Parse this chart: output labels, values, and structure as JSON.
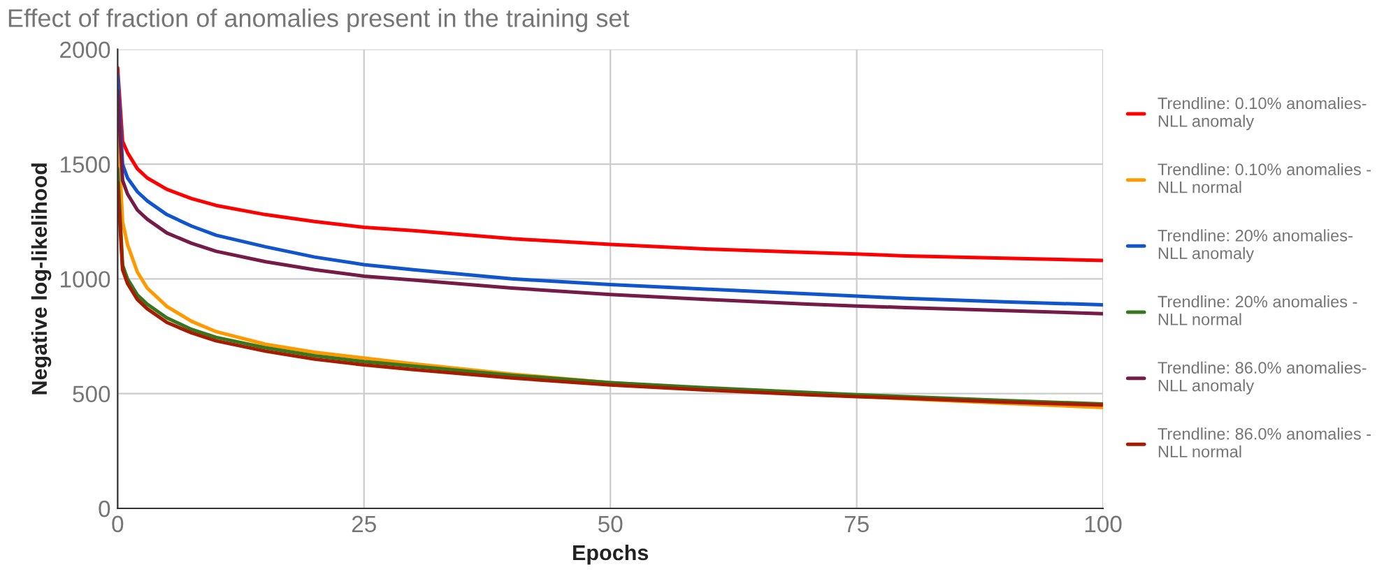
{
  "chart_data": {
    "type": "line",
    "title": "Effect of fraction of anomalies present in the training set",
    "xlabel": "Epochs",
    "ylabel": "Negative log-likelihood",
    "x": [
      0,
      0.5,
      1,
      2,
      3,
      5,
      7.5,
      10,
      15,
      20,
      25,
      30,
      40,
      50,
      60,
      70,
      75,
      80,
      90,
      100
    ],
    "series": [
      {
        "name": "Trendline: 0.10% anomalies-\nNLL anomaly",
        "color": "#ff0000",
        "values": [
          1920,
          1600,
          1550,
          1480,
          1440,
          1390,
          1350,
          1320,
          1280,
          1250,
          1225,
          1210,
          1175,
          1150,
          1130,
          1115,
          1108,
          1100,
          1090,
          1080
        ]
      },
      {
        "name": "Trendline: 0.10% anomalies -\nNLL normal",
        "color": "#ff9900",
        "values": [
          1680,
          1250,
          1150,
          1030,
          960,
          880,
          815,
          770,
          715,
          680,
          655,
          630,
          585,
          548,
          520,
          498,
          488,
          478,
          458,
          440
        ]
      },
      {
        "name": "Trendline: 20% anomalies-\nNLL anomaly",
        "color": "#1155cc",
        "values": [
          1890,
          1500,
          1440,
          1380,
          1340,
          1280,
          1230,
          1190,
          1140,
          1095,
          1062,
          1040,
          1000,
          975,
          955,
          935,
          925,
          915,
          900,
          887
        ]
      },
      {
        "name": "Trendline: 20% anomalies -\nNLL normal",
        "color": "#38761d",
        "values": [
          1480,
          1060,
          1000,
          930,
          890,
          830,
          780,
          745,
          700,
          665,
          640,
          620,
          580,
          548,
          525,
          505,
          495,
          487,
          470,
          455
        ]
      },
      {
        "name": "Trendline: 86.0% anomalies-\nNLL anomaly",
        "color": "#741b47",
        "values": [
          1820,
          1430,
          1370,
          1300,
          1260,
          1200,
          1155,
          1120,
          1075,
          1040,
          1012,
          995,
          960,
          932,
          910,
          890,
          882,
          875,
          862,
          848
        ]
      },
      {
        "name": "Trendline: 86.0% anomalies -\nNLL normal",
        "color": "#a61c00",
        "values": [
          1420,
          1040,
          980,
          910,
          870,
          810,
          765,
          730,
          685,
          650,
          625,
          605,
          568,
          538,
          515,
          495,
          487,
          480,
          463,
          450
        ]
      }
    ],
    "xlim": [
      0,
      100
    ],
    "xticks": [
      0,
      25,
      50,
      75,
      100
    ],
    "ylim": [
      0,
      2000
    ],
    "yticks": [
      0,
      500,
      1000,
      1500,
      2000
    ],
    "grid": true,
    "legend": "right",
    "marker": "none",
    "line_style": "solid"
  }
}
